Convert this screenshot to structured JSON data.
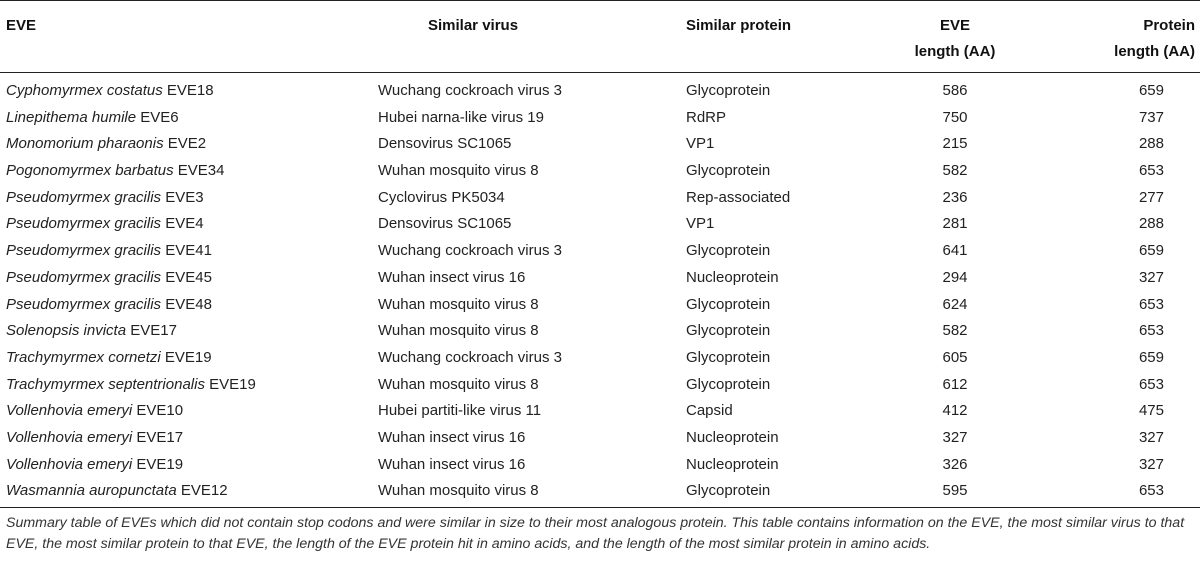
{
  "headers": {
    "eve": "EVE",
    "virus": "Similar virus",
    "protein": "Similar protein",
    "eve_length_1": "EVE",
    "eve_length_2": "length (AA)",
    "protein_length_1": "Protein",
    "protein_length_2": "length (AA)"
  },
  "rows": [
    {
      "species": "Cyphomyrmex costatus",
      "eve": "EVE18",
      "virus": "Wuchang cockroach virus 3",
      "protein": "Glycoprotein",
      "eve_length": "586",
      "protein_length": "659"
    },
    {
      "species": "Linepithema humile",
      "eve": "EVE6",
      "virus": "Hubei narna-like virus 19",
      "protein": "RdRP",
      "eve_length": "750",
      "protein_length": "737"
    },
    {
      "species": "Monomorium pharaonis",
      "eve": "EVE2",
      "virus": "Densovirus SC1065",
      "protein": "VP1",
      "eve_length": "215",
      "protein_length": "288"
    },
    {
      "species": "Pogonomyrmex barbatus",
      "eve": "EVE34",
      "virus": "Wuhan mosquito virus 8",
      "protein": "Glycoprotein",
      "eve_length": "582",
      "protein_length": "653"
    },
    {
      "species": "Pseudomyrmex gracilis",
      "eve": "EVE3",
      "virus": "Cyclovirus PK5034",
      "protein": "Rep-associated",
      "eve_length": "236",
      "protein_length": "277"
    },
    {
      "species": "Pseudomyrmex gracilis",
      "eve": "EVE4",
      "virus": "Densovirus SC1065",
      "protein": "VP1",
      "eve_length": "281",
      "protein_length": "288"
    },
    {
      "species": "Pseudomyrmex gracilis",
      "eve": "EVE41",
      "virus": "Wuchang cockroach virus 3",
      "protein": "Glycoprotein",
      "eve_length": "641",
      "protein_length": "659"
    },
    {
      "species": "Pseudomyrmex gracilis",
      "eve": "EVE45",
      "virus": "Wuhan insect virus 16",
      "protein": "Nucleoprotein",
      "eve_length": "294",
      "protein_length": "327"
    },
    {
      "species": "Pseudomyrmex gracilis",
      "eve": "EVE48",
      "virus": "Wuhan mosquito virus 8",
      "protein": "Glycoprotein",
      "eve_length": "624",
      "protein_length": "653"
    },
    {
      "species": "Solenopsis invicta",
      "eve": "EVE17",
      "virus": "Wuhan mosquito virus 8",
      "protein": "Glycoprotein",
      "eve_length": "582",
      "protein_length": "653"
    },
    {
      "species": "Trachymyrmex cornetzi",
      "eve": "EVE19",
      "virus": "Wuchang cockroach virus 3",
      "protein": "Glycoprotein",
      "eve_length": "605",
      "protein_length": "659"
    },
    {
      "species": "Trachymyrmex septentrionalis",
      "eve": "EVE19",
      "virus": "Wuhan mosquito virus 8",
      "protein": "Glycoprotein",
      "eve_length": "612",
      "protein_length": "653"
    },
    {
      "species": "Vollenhovia emeryi",
      "eve": "EVE10",
      "virus": "Hubei partiti-like virus 11",
      "protein": "Capsid",
      "eve_length": "412",
      "protein_length": "475"
    },
    {
      "species": "Vollenhovia emeryi",
      "eve": "EVE17",
      "virus": "Wuhan insect virus 16",
      "protein": "Nucleoprotein",
      "eve_length": "327",
      "protein_length": "327"
    },
    {
      "species": "Vollenhovia emeryi",
      "eve": "EVE19",
      "virus": "Wuhan insect virus 16",
      "protein": "Nucleoprotein",
      "eve_length": "326",
      "protein_length": "327"
    },
    {
      "species": "Wasmannia auropunctata",
      "eve": "EVE12",
      "virus": "Wuhan mosquito virus 8",
      "protein": "Glycoprotein",
      "eve_length": "595",
      "protein_length": "653"
    }
  ],
  "caption": "Summary table of EVEs which did not contain stop codons and were similar in size to their most analogous protein. This table contains information on the EVE, the most similar virus to that EVE, the most similar protein to that EVE, the length of the EVE protein hit in amino acids, and the length of the most similar protein in amino acids."
}
